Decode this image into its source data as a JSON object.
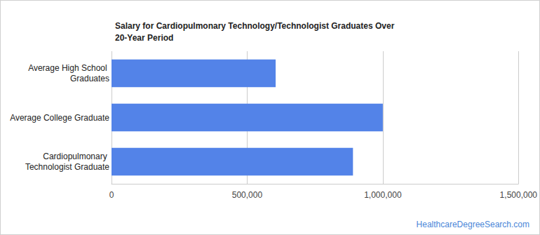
{
  "chart_data": {
    "type": "bar",
    "orientation": "horizontal",
    "title": "Salary for Cardiopulmonary Technology/Technologist Graduates Over 20-Year Period",
    "categories": [
      "Average High School Graduates",
      "Average College Graduate",
      "Cardiopulmonary Technologist Graduate"
    ],
    "values": [
      605000,
      1000000,
      890000
    ],
    "color": "#5383e8",
    "xlim": [
      0,
      1500000
    ],
    "xticks": [
      0,
      {
        "value": 500000,
        "label": "500,000"
      },
      {
        "value": 1000000,
        "label": "1,000,000"
      },
      {
        "value": 1500000,
        "label": "1,500,000"
      }
    ],
    "grid": true,
    "annotations": [
      "HealthcareDegreeSearch.com"
    ]
  }
}
